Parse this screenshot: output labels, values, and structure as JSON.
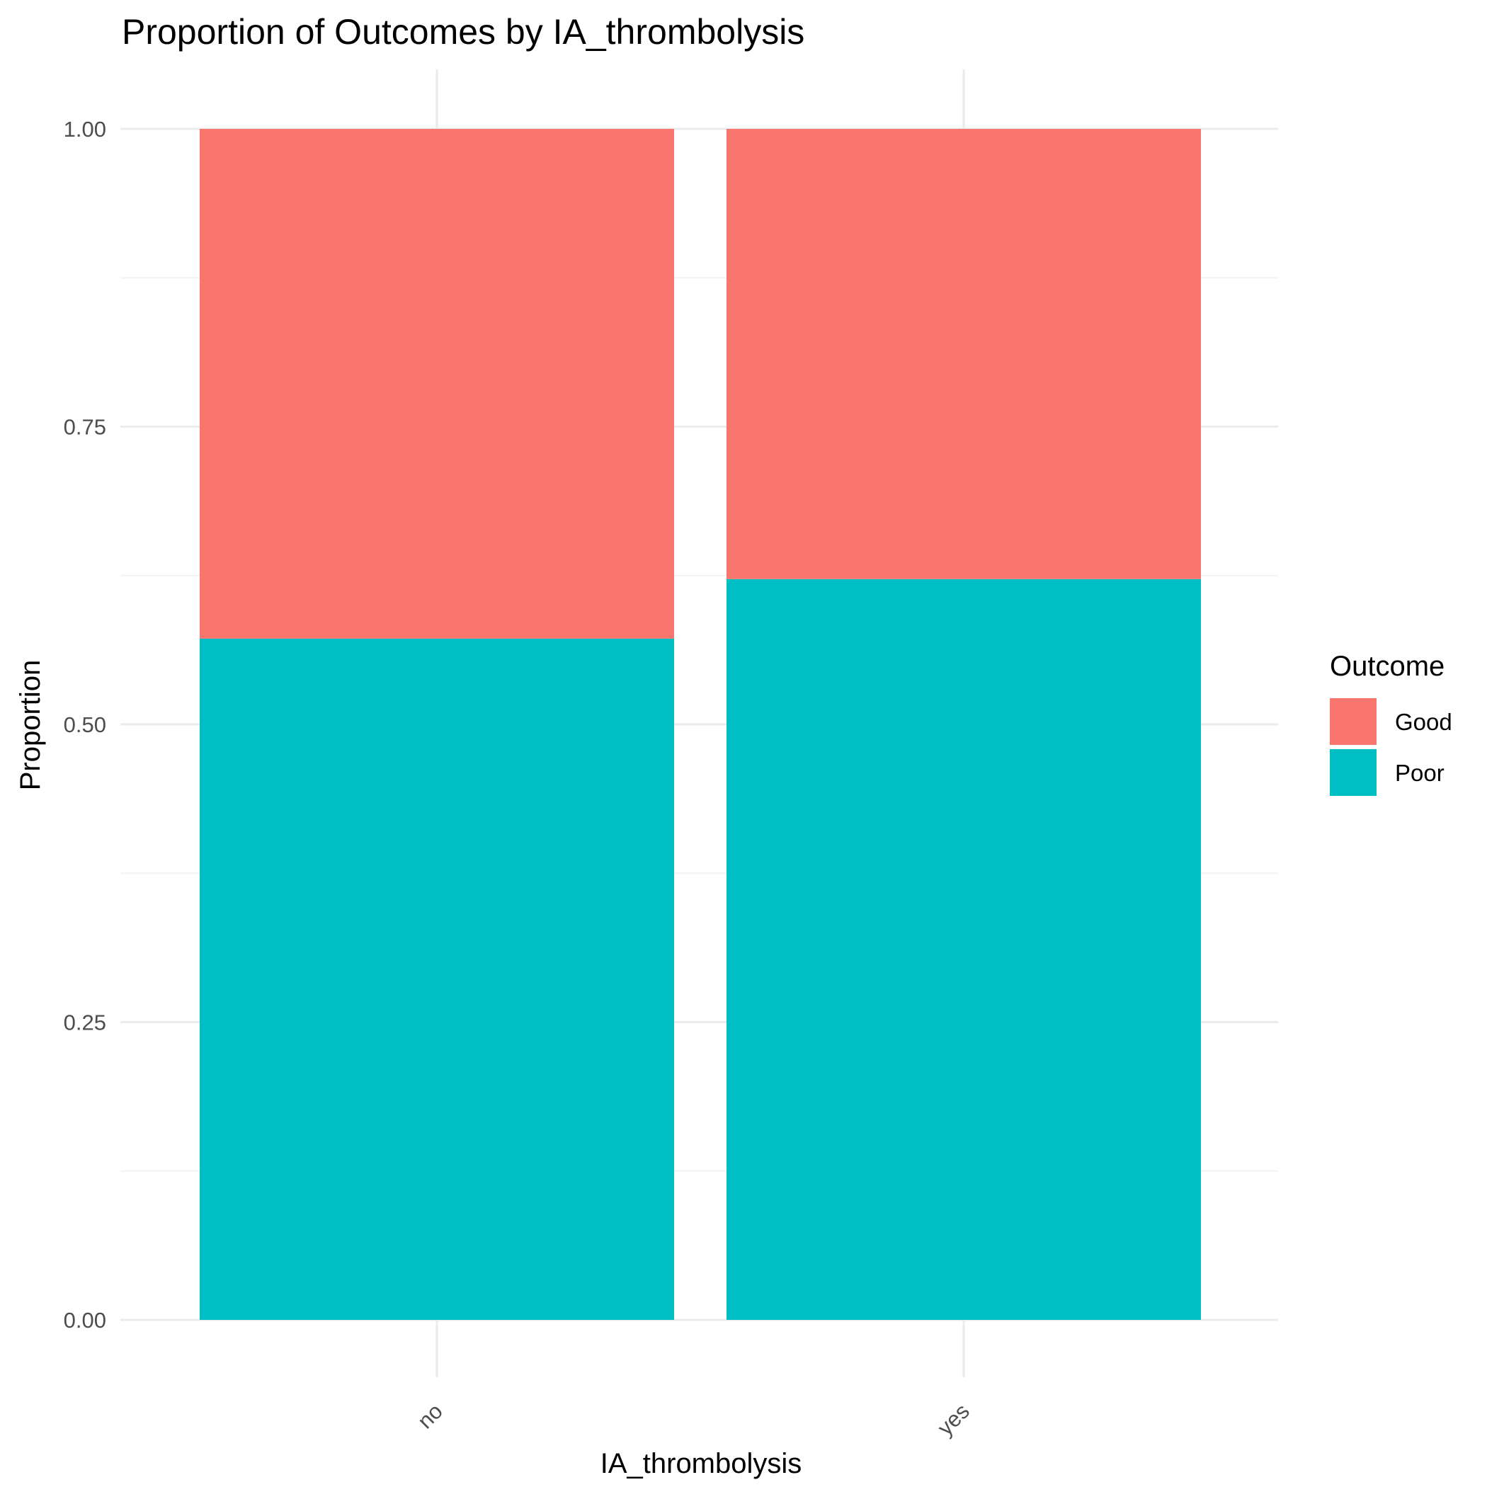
{
  "chart_data": {
    "type": "bar",
    "stacked": true,
    "title": "Proportion of Outcomes by IA_thrombolysis",
    "xlabel": "IA_thrombolysis",
    "ylabel": "Proportion",
    "categories": [
      "no",
      "yes"
    ],
    "ylim": [
      0,
      1
    ],
    "yticks": [
      "0.00",
      "0.25",
      "0.50",
      "0.75",
      "1.00"
    ],
    "ytick_values": [
      0,
      0.25,
      0.5,
      0.75,
      1.0
    ],
    "grid": true,
    "legend": {
      "title": "Outcome",
      "position": "right"
    },
    "series": [
      {
        "name": "Poor",
        "color": "#00BFC4",
        "values": [
          0.572,
          0.622
        ]
      },
      {
        "name": "Good",
        "color": "#F8766D",
        "values": [
          0.428,
          0.378
        ]
      }
    ]
  }
}
